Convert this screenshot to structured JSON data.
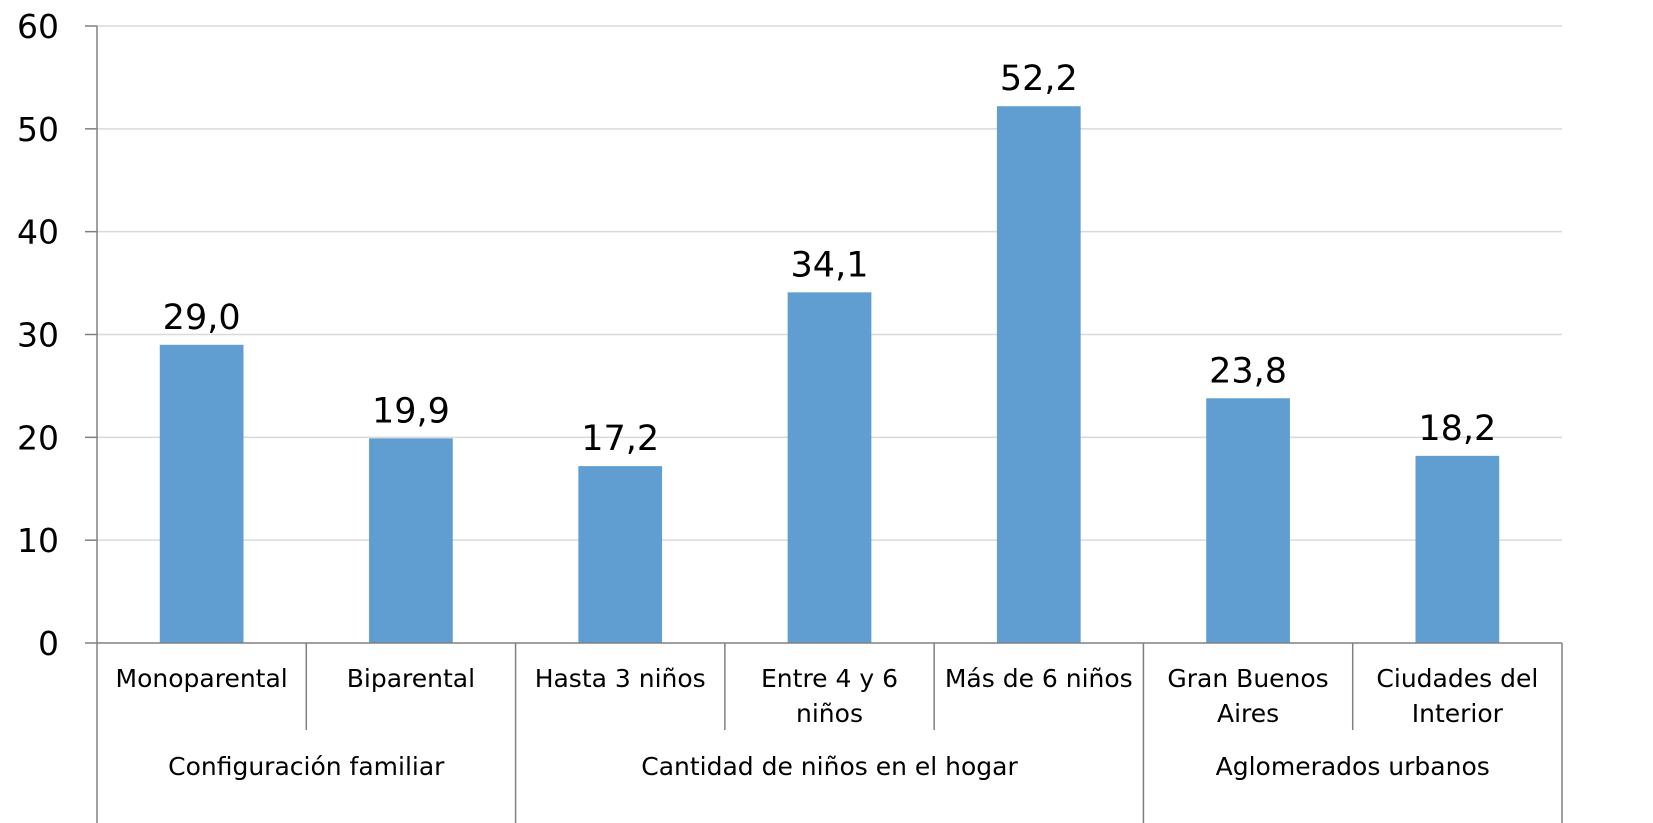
{
  "chart_data": {
    "type": "bar",
    "categories": [
      [
        "Monoparental"
      ],
      [
        "Biparental"
      ],
      [
        "Hasta 3 niños"
      ],
      [
        "Entre 4 y 6",
        "niños"
      ],
      [
        "Más de 6 niños"
      ],
      [
        "Gran Buenos",
        "Aires"
      ],
      [
        "Ciudades del",
        "Interior"
      ]
    ],
    "values": [
      29.0,
      19.9,
      17.2,
      34.1,
      52.2,
      23.8,
      18.2
    ],
    "value_labels": [
      "29,0",
      "19,9",
      "17,2",
      "34,1",
      "52,2",
      "23,8",
      "18,2"
    ],
    "groups": [
      {
        "label": "Configuración familiar",
        "span": [
          0,
          1
        ]
      },
      {
        "label": "Cantidad de niños en el hogar",
        "span": [
          2,
          4
        ]
      },
      {
        "label": "Aglomerados urbanos",
        "span": [
          5,
          6
        ]
      }
    ],
    "ylim": [
      0,
      60
    ],
    "yticks": [
      "0",
      "10",
      "20",
      "30",
      "40",
      "50",
      "60"
    ],
    "grid": true,
    "colors": {
      "bar": "#609dd0",
      "grid": "#d9d9d9",
      "axis": "#808080"
    }
  }
}
